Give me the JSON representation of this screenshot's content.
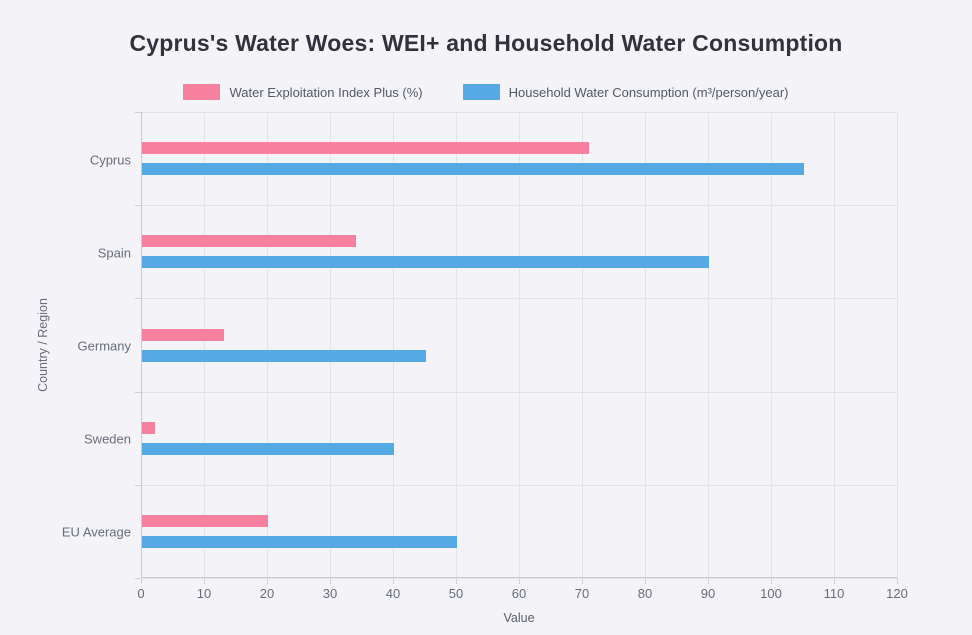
{
  "title": "Cyprus's Water Woes: WEI+ and Household Water Consumption",
  "colors": {
    "background": "#f4f4f8",
    "gridline": "#e3e3ea",
    "axis_line": "#c9c9d2",
    "title_text": "#32323a",
    "label_text": "#686d78",
    "series_pink": "#f8809f",
    "series_blue": "#55aae6"
  },
  "chart_data": {
    "type": "bar",
    "orientation": "horizontal",
    "title": "Cyprus's Water Woes: WEI+ and Household Water Consumption",
    "categories": [
      "Cyprus",
      "Spain",
      "Germany",
      "Sweden",
      "EU Average"
    ],
    "series": [
      {
        "name": "Water Exploitation Index Plus (%)",
        "color": "#f8809f",
        "values": [
          71,
          34,
          13,
          2,
          20
        ]
      },
      {
        "name": "Household Water Consumption (m³/person/year)",
        "color": "#55aae6",
        "values": [
          105,
          90,
          45,
          40,
          50
        ]
      }
    ],
    "xlabel": "Value",
    "ylabel": "Country / Region",
    "xlim": [
      0,
      120
    ],
    "xticks": [
      0,
      10,
      20,
      30,
      40,
      50,
      60,
      70,
      80,
      90,
      100,
      110,
      120
    ],
    "grid": true,
    "legend_position": "top"
  }
}
